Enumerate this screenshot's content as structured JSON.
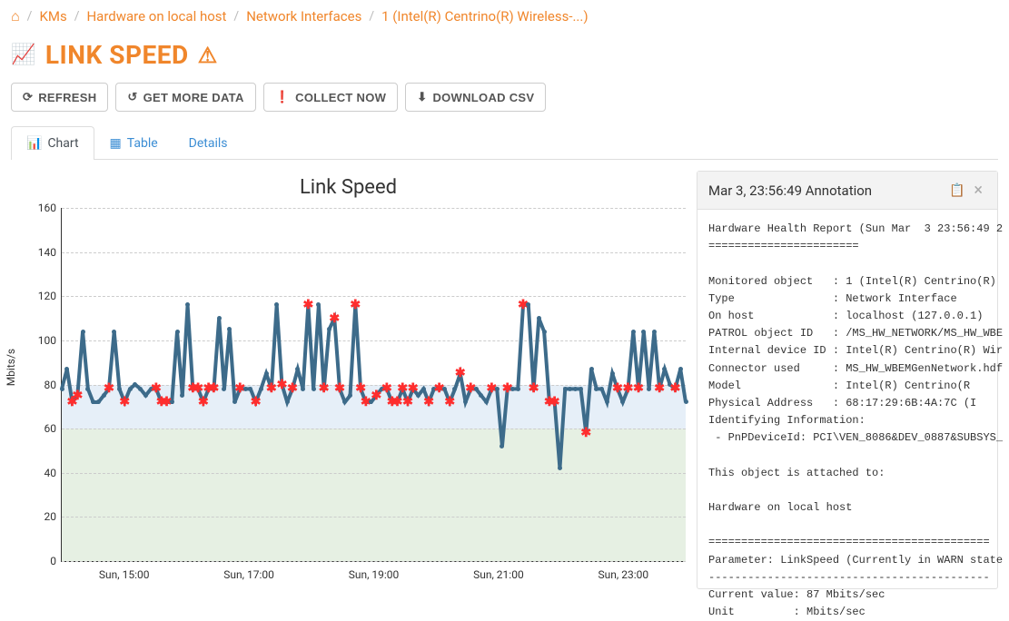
{
  "breadcrumb": {
    "home_icon": "🏠",
    "items": [
      "KMs",
      "Hardware on local host",
      "Network Interfaces",
      "1 (Intel(R) Centrino(R) Wireless-...)"
    ]
  },
  "header": {
    "title": "LINK SPEED"
  },
  "toolbar": {
    "refresh": "REFRESH",
    "get_more": "GET MORE DATA",
    "collect": "COLLECT NOW",
    "download": "DOWNLOAD CSV"
  },
  "tabs": {
    "chart": "Chart",
    "table": "Table",
    "details": "Details"
  },
  "chart": {
    "type": "line",
    "title": "Link Speed",
    "ylabel": "Mbits/s",
    "ylim": [
      0,
      160
    ],
    "yticks": [
      0,
      20,
      40,
      60,
      80,
      100,
      120,
      140,
      160
    ],
    "xticks": [
      "Sun, 15:00",
      "Sun, 17:00",
      "Sun, 19:00",
      "Sun, 21:00",
      "Sun, 23:00"
    ],
    "xtick_positions_pct": [
      10,
      30,
      50,
      70,
      90
    ],
    "series_color": "#3d6b8a",
    "series_width": 2,
    "marker_color": "#3d6b8a",
    "marker_radius": 2.5,
    "annotation_marker_color": "#ff2d2d",
    "grid_color": "#cccccc",
    "background_color": "#ffffff",
    "band_low": {
      "from": 0,
      "to": 60,
      "color": "#e6f0e3"
    },
    "band_mid": {
      "from": 60,
      "to": 80,
      "color": "#e6eff8"
    },
    "values": [
      78,
      87,
      72,
      75,
      104,
      78,
      72,
      72,
      75,
      78,
      104,
      78,
      72,
      78,
      80,
      78,
      75,
      78,
      78,
      72,
      72,
      72,
      104,
      75,
      116,
      78,
      78,
      72,
      78,
      78,
      110,
      78,
      105,
      72,
      78,
      78,
      78,
      72,
      78,
      85,
      78,
      116,
      80,
      72,
      78,
      87,
      78,
      116,
      78,
      116,
      78,
      105,
      110,
      78,
      72,
      75,
      116,
      78,
      72,
      72,
      75,
      78,
      78,
      72,
      72,
      78,
      72,
      78,
      75,
      78,
      72,
      78,
      78,
      78,
      72,
      78,
      85,
      72,
      78,
      78,
      75,
      72,
      78,
      78,
      52,
      78,
      78,
      78,
      116,
      116,
      78,
      110,
      104,
      72,
      72,
      42,
      78,
      78,
      78,
      78,
      58,
      87,
      78,
      78,
      72,
      85,
      78,
      72,
      78,
      104,
      78,
      104,
      78,
      104,
      78,
      87,
      80,
      78,
      87,
      72
    ],
    "annotation_indices": [
      2,
      3,
      9,
      12,
      18,
      19,
      20,
      25,
      26,
      27,
      28,
      29,
      34,
      37,
      40,
      42,
      44,
      47,
      50,
      52,
      53,
      56,
      57,
      58,
      60,
      62,
      63,
      64,
      65,
      66,
      67,
      70,
      72,
      74,
      76,
      78,
      82,
      85,
      88,
      90,
      93,
      94,
      100,
      106,
      108,
      110,
      114,
      117
    ]
  },
  "annotation": {
    "title": "Mar 3, 23:56:49 Annotation",
    "body": "Hardware Health Report (Sun Mar  3 23:56:49 2\n=======================\n\nMonitored object   : 1 (Intel(R) Centrino(R)\nType               : Network Interface\nOn host            : localhost (127.0.0.1)\nPATROL object ID   : /MS_HW_NETWORK/MS_HW_WBE\nInternal device ID : Intel(R) Centrino(R) Wir\nConnector used     : MS_HW_WBEMGenNetwork.hdf\nModel              : Intel(R) Centrino(R\nPhysical Address   : 68:17:29:6B:4A:7C (I\nIdentifying Information:\n - PnPDeviceId: PCI\\VEN_8086&DEV_0887&SUBSYS_\n\nThis object is attached to:\n\nHardware on local host\n\n===========================================\nParameter: LinkSpeed (Currently in WARN state\n-------------------------------------------\nCurrent value: 87 Mbits/sec\nUnit         : Mbits/sec"
  }
}
